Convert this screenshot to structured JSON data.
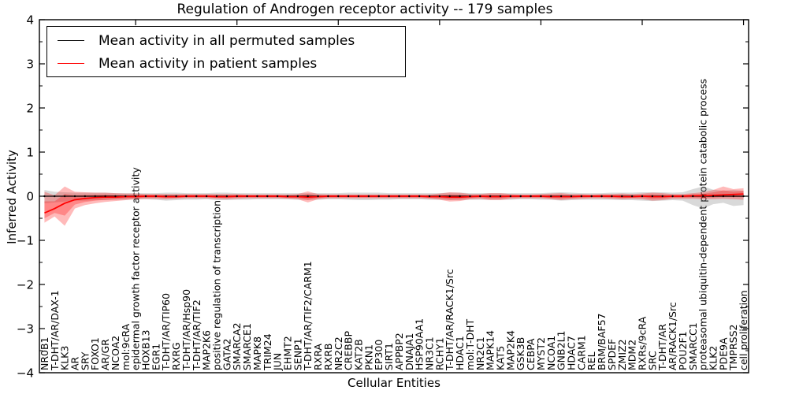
{
  "title": "Regulation of Androgen receptor activity -- 179 samples",
  "axes": {
    "xlabel": "Cellular Entities",
    "ylabel": "Inferred Activity"
  },
  "legend": {
    "position": "upper left",
    "items": [
      {
        "label": "Mean activity in all permuted samples",
        "color": "#000000"
      },
      {
        "label": "Mean activity in patient samples",
        "color": "#ff0000"
      }
    ]
  },
  "colors": {
    "permuted_line": "#000000",
    "permuted_band": "rgba(128,128,128,0.30)",
    "patient_line": "#ff0000",
    "patient_band": "rgba(255,0,0,0.27)",
    "frame": "#000000",
    "background": "#ffffff"
  },
  "chart_data": {
    "type": "line",
    "title": "Regulation of Androgen receptor activity -- 179 samples",
    "xlabel": "Cellular Entities",
    "ylabel": "Inferred Activity",
    "ylim": [
      -4,
      4
    ],
    "yticks": [
      -4,
      -3,
      -2,
      -1,
      0,
      1,
      2,
      3,
      4
    ],
    "ytick_minor_step": 0.5,
    "grid": false,
    "legend_position": "upper left",
    "categories": [
      "NR0B1",
      "T-DHT/AR/DAX-1",
      "KLK3",
      "AR",
      "SRY",
      "FOXO1",
      "AR/GR",
      "NCOA2",
      "mol:9cRA",
      "epidermal growth factor receptor activity",
      "HOXB13",
      "EGR1",
      "T-DHT/AR/TIP60",
      "RXRG",
      "T-DHT/AR/Hsp90",
      "T-DHT/AR/TIF2",
      "MAP2K6",
      "positive regulation of transcription",
      "GATA2",
      "SMARCA2",
      "SMARCE1",
      "MAPK8",
      "TRIM24",
      "JUN",
      "EHMT2",
      "SENP1",
      "T-DHT/AR/TIF2/CARM1",
      "RXRA",
      "RXRB",
      "NR2C2",
      "CREBBP",
      "KAT2B",
      "PKN1",
      "EP300",
      "SIRT1",
      "APPBP2",
      "DNAJA1",
      "HSP90AA1",
      "NR3C1",
      "RCHY1",
      "T-DHT/AR/RACK1/Src",
      "HDAC1",
      "mol:T-DHT",
      "NR2C1",
      "MAPK14",
      "KAT5",
      "MAP2K4",
      "GSK3B",
      "CEBPA",
      "MYST2",
      "NCOA1",
      "GNB2L1",
      "HDAC7",
      "CARM1",
      "REL",
      "BRM/BAF57",
      "SPDEF",
      "ZMIZ2",
      "MDM2",
      "RXRs/9cRA",
      "SRC",
      "T-DHT/AR",
      "AR/RACK1/Src",
      "POU2F1",
      "SMARCC1",
      "proteasomal ubiquitin-dependent protein catabolic process",
      "KLK2",
      "PDE9A",
      "TMPRSS2",
      "cell proliferation"
    ],
    "series": [
      {
        "name": "Mean activity in all permuted samples",
        "color": "#000000",
        "marker": "dot",
        "values": [
          0,
          0,
          0,
          0,
          0,
          0,
          0,
          0,
          0,
          0,
          0,
          0,
          0,
          0,
          0,
          0,
          0,
          0,
          0,
          0,
          0,
          0,
          0,
          0,
          0,
          0,
          0,
          0,
          0,
          0,
          0,
          0,
          0,
          0,
          0,
          0,
          0,
          0,
          0,
          0,
          0,
          0,
          0,
          0,
          0,
          0,
          0,
          0,
          0,
          0,
          0,
          0,
          0,
          0,
          0,
          0,
          0,
          0,
          0,
          0,
          0,
          0,
          0,
          0,
          0,
          0,
          0,
          0,
          0,
          0
        ],
        "band_lo": [
          -0.16,
          -0.14,
          -0.12,
          -0.1,
          -0.1,
          -0.09,
          -0.09,
          -0.08,
          -0.08,
          -0.07,
          -0.07,
          -0.08,
          -0.1,
          -0.09,
          -0.08,
          -0.08,
          -0.07,
          -0.09,
          -0.09,
          -0.08,
          -0.08,
          -0.07,
          -0.07,
          -0.07,
          -0.07,
          -0.08,
          -0.08,
          -0.08,
          -0.07,
          -0.07,
          -0.08,
          -0.09,
          -0.09,
          -0.08,
          -0.08,
          -0.07,
          -0.07,
          -0.07,
          -0.08,
          -0.08,
          -0.09,
          -0.09,
          -0.08,
          -0.08,
          -0.08,
          -0.08,
          -0.08,
          -0.07,
          -0.07,
          -0.08,
          -0.08,
          -0.1,
          -0.09,
          -0.08,
          -0.08,
          -0.08,
          -0.08,
          -0.09,
          -0.09,
          -0.1,
          -0.11,
          -0.1,
          -0.09,
          -0.1,
          -0.2,
          -0.28,
          -0.18,
          -0.15,
          -0.22,
          -0.2
        ],
        "band_hi": [
          0.14,
          0.1,
          0.09,
          0.08,
          0.08,
          0.08,
          0.08,
          0.07,
          0.07,
          0.07,
          0.07,
          0.07,
          0.08,
          0.08,
          0.07,
          0.07,
          0.07,
          0.08,
          0.08,
          0.07,
          0.07,
          0.07,
          0.07,
          0.07,
          0.07,
          0.07,
          0.07,
          0.07,
          0.07,
          0.07,
          0.08,
          0.08,
          0.08,
          0.08,
          0.07,
          0.07,
          0.07,
          0.07,
          0.07,
          0.07,
          0.08,
          0.08,
          0.07,
          0.07,
          0.07,
          0.07,
          0.07,
          0.07,
          0.07,
          0.07,
          0.08,
          0.09,
          0.08,
          0.07,
          0.07,
          0.07,
          0.08,
          0.08,
          0.08,
          0.09,
          0.09,
          0.09,
          0.08,
          0.09,
          0.16,
          0.22,
          0.15,
          0.12,
          0.14,
          0.12
        ]
      },
      {
        "name": "Mean activity in patient samples",
        "color": "#ff0000",
        "marker": "none",
        "values": [
          -0.38,
          -0.28,
          -0.16,
          -0.08,
          -0.05,
          -0.03,
          -0.02,
          -0.02,
          -0.01,
          -0.01,
          0,
          0,
          -0.01,
          -0.01,
          0,
          0,
          0,
          -0.01,
          -0.01,
          0,
          0,
          0,
          0,
          0,
          -0.01,
          -0.01,
          -0.02,
          -0.01,
          0,
          0,
          0,
          0,
          0,
          0,
          0,
          0,
          0,
          0,
          -0.01,
          -0.01,
          -0.02,
          -0.02,
          -0.01,
          0,
          -0.01,
          -0.01,
          0,
          0,
          0,
          0,
          -0.01,
          -0.01,
          -0.01,
          0,
          0,
          0,
          0,
          -0.01,
          -0.01,
          0,
          -0.01,
          -0.01,
          0,
          0,
          0.01,
          0.01,
          0.02,
          0.03,
          0.04,
          0.05
        ],
        "band_lo": [
          -0.6,
          -0.46,
          -0.67,
          -0.28,
          -0.2,
          -0.16,
          -0.13,
          -0.11,
          -0.09,
          -0.07,
          -0.06,
          -0.06,
          -0.07,
          -0.06,
          -0.05,
          -0.05,
          -0.05,
          -0.06,
          -0.07,
          -0.06,
          -0.05,
          -0.05,
          -0.05,
          -0.05,
          -0.06,
          -0.07,
          -0.14,
          -0.07,
          -0.05,
          -0.05,
          -0.05,
          -0.05,
          -0.05,
          -0.05,
          -0.05,
          -0.05,
          -0.05,
          -0.05,
          -0.06,
          -0.08,
          -0.12,
          -0.11,
          -0.07,
          -0.06,
          -0.09,
          -0.09,
          -0.06,
          -0.05,
          -0.05,
          -0.05,
          -0.07,
          -0.09,
          -0.07,
          -0.06,
          -0.05,
          -0.05,
          -0.06,
          -0.07,
          -0.06,
          -0.07,
          -0.1,
          -0.09,
          -0.06,
          -0.06,
          -0.06,
          -0.07,
          -0.07,
          -0.06,
          -0.07,
          -0.08
        ],
        "band_hi": [
          0.1,
          0.02,
          0.22,
          0.1,
          0.09,
          0.08,
          0.08,
          0.07,
          0.06,
          0.06,
          0.05,
          0.05,
          0.05,
          0.05,
          0.05,
          0.05,
          0.05,
          0.05,
          0.05,
          0.05,
          0.04,
          0.04,
          0.04,
          0.04,
          0.04,
          0.05,
          0.11,
          0.05,
          0.04,
          0.04,
          0.04,
          0.04,
          0.04,
          0.04,
          0.04,
          0.04,
          0.04,
          0.04,
          0.04,
          0.06,
          0.09,
          0.08,
          0.05,
          0.05,
          0.07,
          0.07,
          0.05,
          0.04,
          0.04,
          0.05,
          0.06,
          0.07,
          0.05,
          0.05,
          0.04,
          0.05,
          0.05,
          0.06,
          0.05,
          0.06,
          0.08,
          0.07,
          0.05,
          0.05,
          0.07,
          0.09,
          0.14,
          0.22,
          0.16,
          0.18
        ]
      }
    ],
    "n_samples_in_title": 179
  }
}
